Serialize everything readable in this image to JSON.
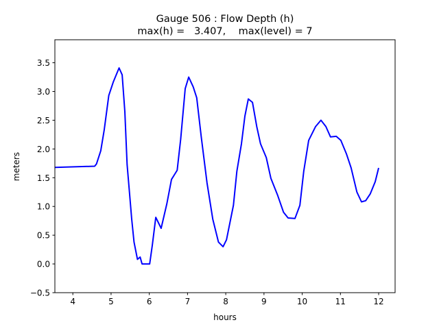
{
  "chart_data": {
    "type": "line",
    "title_line1": "Gauge 506 : Flow Depth (h)",
    "title_line2": "max(h) =   3.407,    max(level) = 7",
    "xlabel": "hours",
    "ylabel": "meters",
    "xlim": [
      3.53,
      12.43
    ],
    "ylim": [
      -0.5,
      3.9
    ],
    "xticks": [
      4,
      5,
      6,
      7,
      8,
      9,
      10,
      11,
      12
    ],
    "xtick_labels": [
      "4",
      "5",
      "6",
      "7",
      "8",
      "9",
      "10",
      "11",
      "12"
    ],
    "yticks": [
      -0.5,
      0.0,
      0.5,
      1.0,
      1.5,
      2.0,
      2.5,
      3.0,
      3.5
    ],
    "ytick_labels": [
      "−0.5",
      "0.0",
      "0.5",
      "1.0",
      "1.5",
      "2.0",
      "2.5",
      "3.0",
      "3.5"
    ],
    "grid": false,
    "series": [
      {
        "name": "h",
        "color": "#0000ff",
        "x": [
          3.53,
          4.57,
          4.62,
          4.73,
          4.82,
          4.94,
          5.06,
          5.21,
          5.29,
          5.36,
          5.42,
          5.48,
          5.54,
          5.6,
          5.69,
          5.76,
          5.81,
          6.01,
          6.08,
          6.17,
          6.31,
          6.46,
          6.58,
          6.73,
          6.82,
          6.94,
          7.03,
          7.15,
          7.24,
          7.36,
          7.51,
          7.66,
          7.81,
          7.93,
          8.02,
          8.2,
          8.29,
          8.41,
          8.5,
          8.59,
          8.7,
          8.81,
          8.91,
          9.06,
          9.18,
          9.36,
          9.51,
          9.63,
          9.81,
          9.94,
          10.04,
          10.17,
          10.35,
          10.49,
          10.62,
          10.74,
          10.89,
          11.01,
          11.16,
          11.28,
          11.43,
          11.55,
          11.66,
          11.78,
          11.91,
          12.0
        ],
        "y": [
          1.68,
          1.7,
          1.74,
          1.97,
          2.33,
          2.93,
          3.17,
          3.41,
          3.29,
          2.65,
          1.73,
          1.25,
          0.78,
          0.38,
          0.08,
          0.12,
          0.0,
          0.0,
          0.33,
          0.81,
          0.62,
          1.05,
          1.47,
          1.63,
          2.17,
          3.05,
          3.25,
          3.08,
          2.89,
          2.21,
          1.41,
          0.78,
          0.38,
          0.3,
          0.42,
          1.02,
          1.61,
          2.09,
          2.57,
          2.87,
          2.81,
          2.39,
          2.09,
          1.85,
          1.49,
          1.19,
          0.9,
          0.8,
          0.79,
          1.02,
          1.61,
          2.15,
          2.39,
          2.5,
          2.39,
          2.21,
          2.22,
          2.15,
          1.91,
          1.67,
          1.25,
          1.08,
          1.1,
          1.22,
          1.43,
          1.67
        ]
      }
    ]
  }
}
